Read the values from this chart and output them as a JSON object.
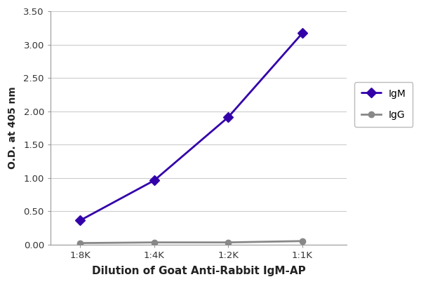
{
  "x_labels": [
    "1:8K",
    "1:4K",
    "1:2K",
    "1:1K"
  ],
  "x_positions": [
    0,
    1,
    2,
    3
  ],
  "IgM_values": [
    0.36,
    0.96,
    1.91,
    3.17
  ],
  "IgG_values": [
    0.02,
    0.03,
    0.03,
    0.05
  ],
  "IgM_color": "#3300aa",
  "IgG_color": "#888888",
  "IgM_label": "IgM",
  "IgG_label": "IgG",
  "xlabel": "Dilution of Goat Anti-Rabbit IgM-AP",
  "ylabel": "O.D. at 405 nm",
  "ylim": [
    0.0,
    3.5
  ],
  "yticks": [
    0.0,
    0.5,
    1.0,
    1.5,
    2.0,
    2.5,
    3.0,
    3.5
  ],
  "background_color": "#ffffff",
  "grid_color": "#cccccc",
  "spine_color": "#999999",
  "IgM_marker_size": 7,
  "IgG_marker_size": 6,
  "line_width": 2.0,
  "xlabel_fontsize": 11,
  "ylabel_fontsize": 10,
  "tick_fontsize": 9.5,
  "legend_fontsize": 10
}
